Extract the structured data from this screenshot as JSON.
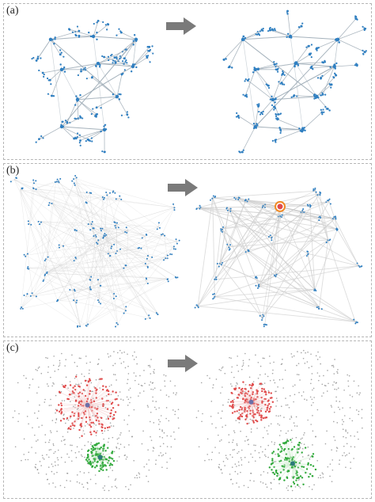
{
  "panels": [
    {
      "label": "(a)"
    },
    {
      "label": "(b)"
    },
    {
      "label": "(c)"
    }
  ],
  "colors": {
    "blue_node": "#2f7fc1",
    "red_node": "#e04b4b",
    "green_node": "#2fa93a",
    "gray_node": "#8c8c8c",
    "edge": "#c8c8c8",
    "arrow": "#7a7a7a",
    "highlight_ring": "#f08a24"
  },
  "icons": {
    "transition": "right-arrow-icon",
    "focus_marker": "highlight-ring-icon"
  }
}
